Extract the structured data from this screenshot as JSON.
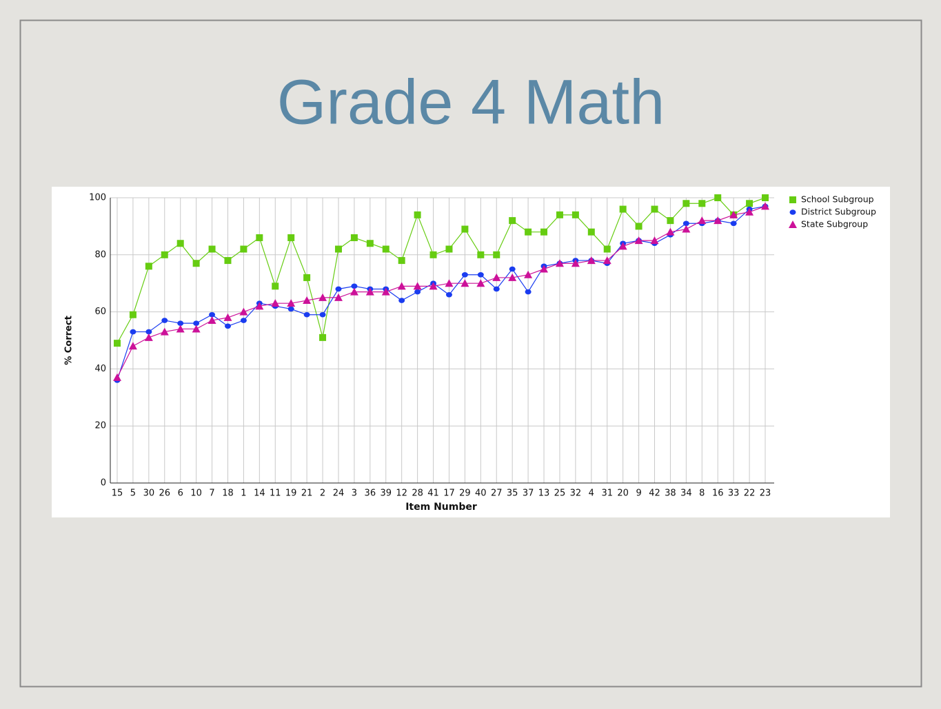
{
  "chart_data": {
    "type": "line",
    "title": "Grade 4 Math",
    "x_label": "Item Number",
    "y_label": "% Correct",
    "categories": [
      "15",
      "5",
      "30",
      "26",
      "6",
      "10",
      "7",
      "18",
      "1",
      "14",
      "11",
      "19",
      "21",
      "2",
      "24",
      "3",
      "36",
      "39",
      "12",
      "28",
      "41",
      "17",
      "29",
      "40",
      "27",
      "35",
      "37",
      "13",
      "25",
      "32",
      "4",
      "31",
      "20",
      "9",
      "42",
      "38",
      "34",
      "8",
      "16",
      "33",
      "22",
      "23"
    ],
    "series": [
      {
        "name": "School Subgroup",
        "color": "#66cc11",
        "marker": "square",
        "values": [
          49,
          59,
          76,
          80,
          84,
          77,
          82,
          78,
          82,
          86,
          69,
          86,
          72,
          51,
          82,
          86,
          84,
          82,
          78,
          94,
          80,
          82,
          89,
          80,
          80,
          92,
          88,
          88,
          94,
          94,
          88,
          82,
          96,
          90,
          96,
          92,
          98,
          98,
          100,
          94,
          98,
          100
        ]
      },
      {
        "name": "District Subgroup",
        "color": "#1a3cf0",
        "marker": "circle",
        "values": [
          36,
          53,
          53,
          57,
          56,
          56,
          59,
          55,
          57,
          63,
          62,
          61,
          59,
          59,
          68,
          69,
          68,
          68,
          64,
          67,
          70,
          66,
          73,
          73,
          68,
          75,
          67,
          76,
          77,
          78,
          78,
          77,
          84,
          85,
          84,
          87,
          91,
          91,
          92,
          91,
          96,
          97
        ]
      },
      {
        "name": "State Subgroup",
        "color": "#cc1199",
        "marker": "triangle",
        "values": [
          37,
          48,
          51,
          53,
          54,
          54,
          57,
          58,
          60,
          62,
          63,
          63,
          64,
          65,
          65,
          67,
          67,
          67,
          69,
          69,
          69,
          70,
          70,
          70,
          72,
          72,
          73,
          75,
          77,
          77,
          78,
          78,
          83,
          85,
          85,
          88,
          89,
          92,
          92,
          94,
          95,
          97
        ]
      }
    ],
    "ylim": [
      0,
      100
    ],
    "yticks": [
      0,
      20,
      40,
      60,
      80,
      100
    ],
    "grid": true,
    "legend": "right"
  }
}
